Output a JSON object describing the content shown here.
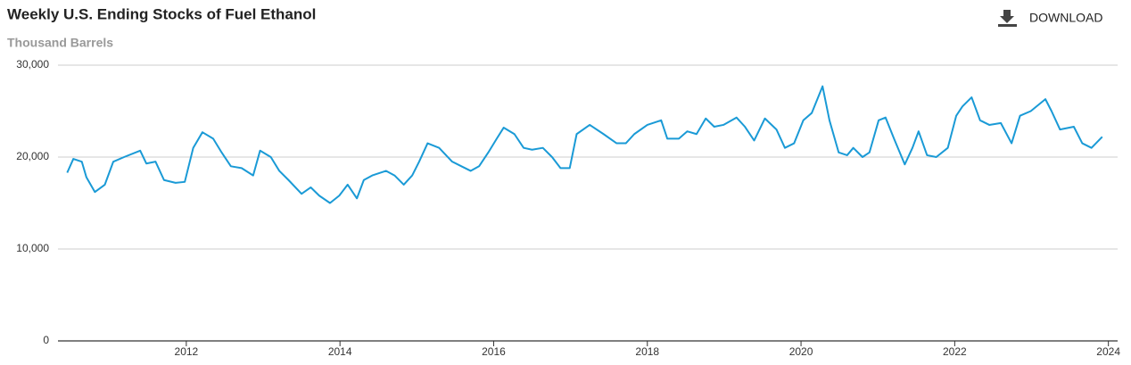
{
  "download": "DOWNLOAD",
  "chart_data": {
    "type": "line",
    "title": "Weekly U.S. Ending Stocks of Fuel Ethanol",
    "subtitle": "Thousand Barrels",
    "xlim": [
      2010.33,
      2024.12
    ],
    "xticks": [
      2012,
      2014,
      2016,
      2018,
      2020,
      2022,
      2024
    ],
    "ylim": [
      0,
      30000
    ],
    "yticks": [
      0,
      {
        "value": 10000,
        "label": "10,000"
      },
      {
        "value": 20000,
        "label": "20,000"
      },
      {
        "value": 30000,
        "label": "30,000"
      }
    ],
    "grid": true,
    "x": [
      2010.45,
      2010.53,
      2010.64,
      2010.7,
      2010.81,
      2010.94,
      2011.05,
      2011.19,
      2011.4,
      2011.48,
      2011.6,
      2011.71,
      2011.86,
      2011.98,
      2012.09,
      2012.21,
      2012.35,
      2012.46,
      2012.58,
      2012.72,
      2012.87,
      2012.96,
      2013.1,
      2013.21,
      2013.33,
      2013.5,
      2013.62,
      2013.73,
      2013.87,
      2013.99,
      2014.1,
      2014.22,
      2014.31,
      2014.42,
      2014.6,
      2014.71,
      2014.83,
      2014.94,
      2015.03,
      2015.14,
      2015.29,
      2015.46,
      2015.58,
      2015.7,
      2015.81,
      2015.93,
      2016.04,
      2016.13,
      2016.27,
      2016.39,
      2016.5,
      2016.64,
      2016.76,
      2016.87,
      2016.99,
      2017.08,
      2017.25,
      2017.43,
      2017.6,
      2017.72,
      2017.83,
      2018.0,
      2018.18,
      2018.26,
      2018.41,
      2018.52,
      2018.64,
      2018.76,
      2018.87,
      2018.99,
      2019.16,
      2019.27,
      2019.39,
      2019.53,
      2019.68,
      2019.79,
      2019.91,
      2020.03,
      2020.14,
      2020.28,
      2020.37,
      2020.49,
      2020.6,
      2020.68,
      2020.8,
      2020.89,
      2021.01,
      2021.1,
      2021.21,
      2021.35,
      2021.45,
      2021.53,
      2021.64,
      2021.76,
      2021.91,
      2022.02,
      2022.1,
      2022.22,
      2022.33,
      2022.45,
      2022.6,
      2022.74,
      2022.85,
      2022.99,
      2023.18,
      2023.26,
      2023.37,
      2023.55,
      2023.66,
      2023.78,
      2023.92
    ],
    "series": [
      {
        "name": "Weekly U.S. Ending Stocks of Fuel Ethanol",
        "color": "#1a9ad6",
        "values": [
          18300,
          19800,
          19500,
          17800,
          16200,
          17000,
          19500,
          20000,
          20700,
          19300,
          19500,
          17500,
          17200,
          17300,
          21000,
          22700,
          22000,
          20500,
          19000,
          18800,
          18000,
          20700,
          20000,
          18500,
          17500,
          16000,
          16700,
          15800,
          15000,
          15800,
          17000,
          15500,
          17500,
          18000,
          18500,
          18000,
          17000,
          18000,
          19500,
          21500,
          21000,
          19500,
          19000,
          18500,
          19000,
          20500,
          22000,
          23200,
          22500,
          21000,
          20800,
          21000,
          20000,
          18800,
          18800,
          22500,
          23500,
          22500,
          21500,
          21500,
          22500,
          23500,
          24000,
          22000,
          22000,
          22800,
          22500,
          24200,
          23300,
          23500,
          24300,
          23300,
          21800,
          24200,
          23000,
          21000,
          21500,
          24000,
          24800,
          27700,
          24000,
          20500,
          20200,
          21000,
          20000,
          20500,
          24000,
          24300,
          22000,
          19200,
          21000,
          22800,
          20200,
          20000,
          21000,
          24500,
          25500,
          26500,
          24000,
          23500,
          23700,
          21500,
          24500,
          25000,
          26300,
          25000,
          23000,
          23300,
          21500,
          21000,
          22200
        ]
      }
    ]
  }
}
